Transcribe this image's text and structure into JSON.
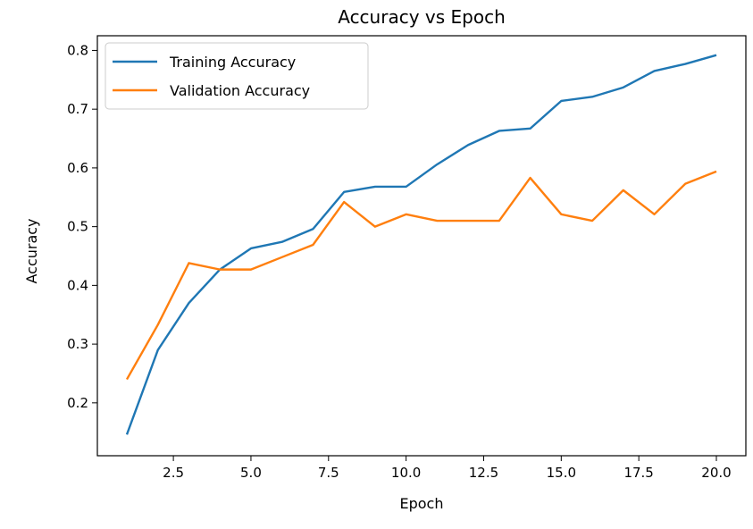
{
  "chart_data": {
    "type": "line",
    "title": "Accuracy vs Epoch",
    "xlabel": "Epoch",
    "ylabel": "Accuracy",
    "xlim": [
      0.05,
      20.95
    ],
    "ylim": [
      0.11,
      0.825
    ],
    "xticks": [
      2.5,
      5.0,
      7.5,
      10.0,
      12.5,
      15.0,
      17.5,
      20.0
    ],
    "xtick_labels": [
      "2.5",
      "5.0",
      "7.5",
      "10.0",
      "12.5",
      "15.0",
      "17.5",
      "20.0"
    ],
    "yticks": [
      0.2,
      0.3,
      0.4,
      0.5,
      0.6,
      0.7,
      0.8
    ],
    "ytick_labels": [
      "0.2",
      "0.3",
      "0.4",
      "0.5",
      "0.6",
      "0.7",
      "0.8"
    ],
    "grid": false,
    "legend_position": "top-left",
    "x": [
      1,
      2,
      3,
      4,
      5,
      6,
      7,
      8,
      9,
      10,
      11,
      12,
      13,
      14,
      15,
      16,
      17,
      18,
      19,
      20
    ],
    "series": [
      {
        "name": "Training Accuracy",
        "color": "#1f77b4",
        "values": [
          0.146,
          0.29,
          0.37,
          0.427,
          0.463,
          0.474,
          0.496,
          0.559,
          0.568,
          0.568,
          0.606,
          0.639,
          0.663,
          0.667,
          0.714,
          0.721,
          0.737,
          0.765,
          0.777,
          0.792
        ]
      },
      {
        "name": "Validation Accuracy",
        "color": "#ff7f0e",
        "values": [
          0.24,
          0.333,
          0.438,
          0.427,
          0.427,
          0.448,
          0.469,
          0.542,
          0.5,
          0.521,
          0.51,
          0.51,
          0.51,
          0.583,
          0.521,
          0.51,
          0.562,
          0.521,
          0.573,
          0.594
        ]
      }
    ]
  }
}
